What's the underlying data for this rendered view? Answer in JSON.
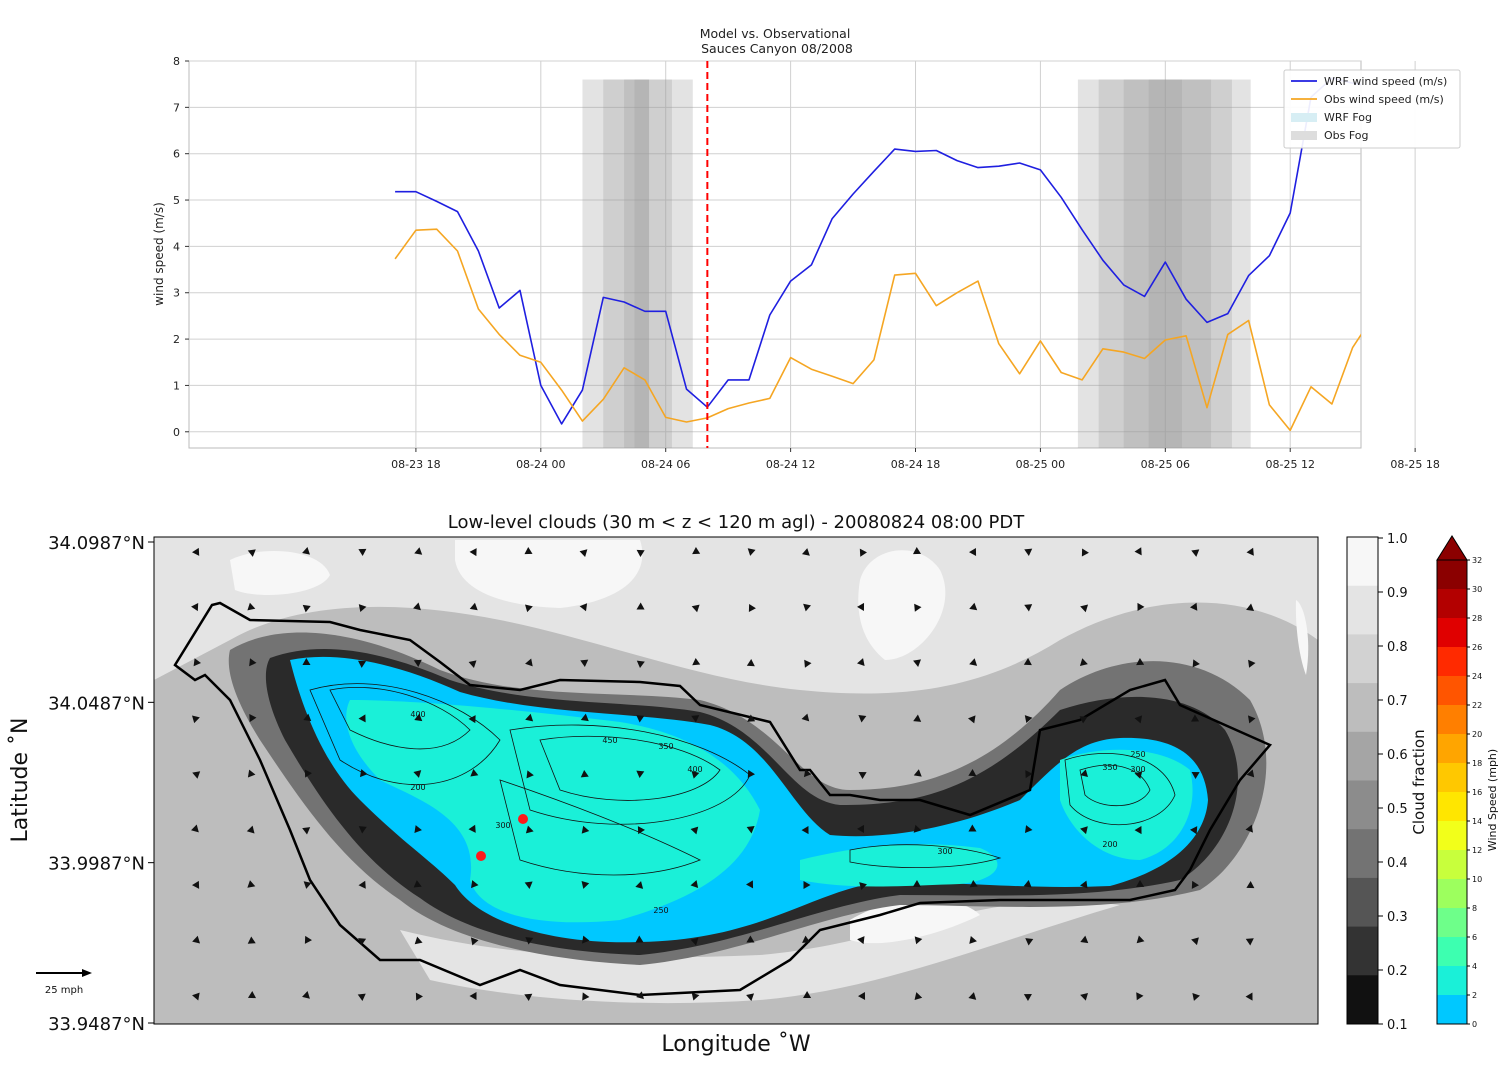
{
  "chart_data": [
    {
      "type": "line",
      "title": "Model vs. Observational",
      "subtitle": "Sauces Canyon 08/2008",
      "xlabel": "",
      "ylabel": "wind speed (m/s)",
      "ylim": [
        -0.35,
        8
      ],
      "yticks": [
        0,
        1,
        2,
        3,
        4,
        5,
        6,
        7,
        8
      ],
      "xlim_hours": [
        -16.9,
        39.4
      ],
      "xtick_labels": [
        "08-23 18",
        "08-24 00",
        "08-24 06",
        "08-24 12",
        "08-24 18",
        "08-25 00",
        "08-25 06",
        "08-25 12",
        "08-25 18"
      ],
      "xtick_hours": [
        -6,
        0,
        6,
        12,
        18,
        24,
        30,
        36,
        42
      ],
      "grid": true,
      "legend_position": "upper right",
      "x_hours": [
        -7,
        -6,
        -5,
        -4,
        -3,
        -2,
        -1,
        0,
        1,
        2,
        3,
        4,
        5,
        6,
        7,
        8,
        9,
        10,
        11,
        12,
        13,
        14,
        15,
        16,
        17,
        18,
        19,
        20,
        21,
        22,
        23,
        24,
        25,
        26,
        27,
        28,
        29,
        30,
        31,
        32,
        33,
        34,
        35,
        36,
        37,
        38,
        39,
        40
      ],
      "series": [
        {
          "name": "WRF wind speed (m/s)",
          "color": "#1f1fe0",
          "values": [
            5.18,
            5.18,
            4.97,
            4.75,
            3.9,
            2.67,
            3.05,
            1.0,
            0.17,
            0.9,
            2.9,
            2.8,
            2.6,
            2.6,
            0.92,
            0.53,
            1.12,
            1.12,
            2.52,
            3.25,
            3.6,
            4.6,
            5.13,
            5.62,
            6.1,
            6.05,
            6.07,
            5.85,
            5.7,
            5.73,
            5.8,
            5.65,
            5.06,
            4.36,
            3.7,
            3.17,
            2.92,
            3.66,
            2.86,
            2.36,
            2.55,
            3.37,
            3.8,
            4.72,
            7.22,
            7.63,
            7.52,
            7.45
          ]
        },
        {
          "name": "Obs wind speed (m/s)",
          "color": "#f5a623",
          "values": [
            3.73,
            4.35,
            4.37,
            3.9,
            2.65,
            2.1,
            1.65,
            1.5,
            0.9,
            0.23,
            0.7,
            1.38,
            1.12,
            0.31,
            0.21,
            0.3,
            0.5,
            0.62,
            0.72,
            1.6,
            1.35,
            1.2,
            1.04,
            1.55,
            3.38,
            3.42,
            2.72,
            3.0,
            3.25,
            1.9,
            1.25,
            1.96,
            1.28,
            1.12,
            1.79,
            1.72,
            1.58,
            1.98,
            2.07,
            0.52,
            2.1,
            2.4,
            0.58,
            0.03,
            0.97,
            0.6,
            1.82,
            2.5
          ]
        }
      ],
      "legend_entries": [
        {
          "label": "WRF wind speed (m/s)",
          "kind": "line",
          "color": "#1f1fe0"
        },
        {
          "label": "Obs wind speed (m/s)",
          "kind": "line",
          "color": "#f5a623"
        },
        {
          "label": "WRF Fog",
          "kind": "patch",
          "color": "#d7eef4"
        },
        {
          "label": "Obs Fog",
          "kind": "patch",
          "color": "#dddddd"
        }
      ],
      "shaded_spans_hours": [
        {
          "from": 2,
          "to": 7.3,
          "y_top": 7.6
        },
        {
          "from": 3,
          "to": 6.3,
          "y_top": 7.6
        },
        {
          "from": 4,
          "to": 5.2,
          "y_top": 7.6
        },
        {
          "from": 4.5,
          "to": 5.2,
          "y_top": 7.6
        },
        {
          "from": 25.8,
          "to": 34.1,
          "y_top": 7.6
        },
        {
          "from": 26.8,
          "to": 33.2,
          "y_top": 7.6
        },
        {
          "from": 28,
          "to": 32.2,
          "y_top": 7.6
        },
        {
          "from": 29.2,
          "to": 30.8,
          "y_top": 7.6
        }
      ],
      "vertical_marker_hour": 8,
      "vertical_marker_color": "#ff0000"
    },
    {
      "type": "heatmap",
      "title": "Low-level clouds (30 m < z < 120 m agl) - 20080824 08:00 PDT",
      "xlabel": "Longitude $^\\circ$W",
      "xlabel_display": "Longitude ˚W",
      "ylabel_display": "Latitude ˚N",
      "ytick_labels": [
        "34.0987°N",
        "34.0487°N",
        "33.9987°N",
        "33.9487°N"
      ],
      "yticks": [
        34.0987,
        34.0487,
        33.9987,
        33.9487
      ],
      "cloud_colorbar": {
        "label": "Cloud fraction",
        "ticks": [
          "1.0",
          "0.9",
          "0.8",
          "0.7",
          "0.6",
          "0.5",
          "0.4",
          "0.3",
          "0.2",
          "0.1"
        ],
        "colors": [
          "#f7f7f7",
          "#e4e4e4",
          "#d2d2d2",
          "#bdbdbd",
          "#a5a5a5",
          "#8c8c8c",
          "#737373",
          "#555555",
          "#333333",
          "#111111"
        ]
      },
      "wind_colorbar": {
        "label": "Wind Speed (mph)",
        "ticks": [
          "32",
          "30",
          "28",
          "26",
          "24",
          "22",
          "20",
          "18",
          "16",
          "14",
          "12",
          "10",
          "8",
          "6",
          "4",
          "2",
          "0"
        ],
        "colors": [
          "#8b0000",
          "#b30000",
          "#e00000",
          "#ff2a00",
          "#ff5500",
          "#ff7f00",
          "#ffa500",
          "#ffc800",
          "#ffe600",
          "#f2ff1a",
          "#c8ff3c",
          "#9dff5e",
          "#6eff8a",
          "#3dffb0",
          "#1af0d8",
          "#00c8ff"
        ]
      },
      "contour_labels": [
        "450",
        "400",
        "350",
        "400",
        "200",
        "300",
        "250",
        "300",
        "250",
        "350",
        "200",
        "300"
      ],
      "scale_arrow_label": "25 mph",
      "station_markers": 2
    }
  ]
}
